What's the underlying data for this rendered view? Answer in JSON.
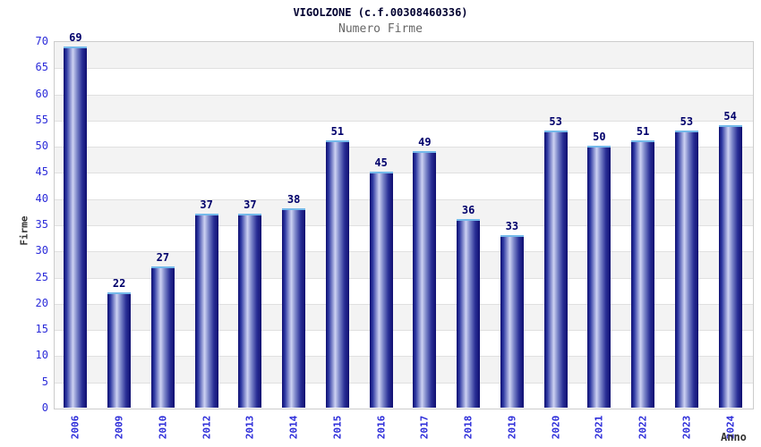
{
  "header": {
    "title": "VIGOLZONE (c.f.00308460336)",
    "subtitle": "Numero Firme"
  },
  "chart_data": {
    "type": "bar",
    "title": "VIGOLZONE (c.f.00308460336)",
    "subtitle": "Numero Firme",
    "categories": [
      "2006",
      "2009",
      "2010",
      "2012",
      "2013",
      "2014",
      "2015",
      "2016",
      "2017",
      "2018",
      "2019",
      "2020",
      "2021",
      "2022",
      "2023",
      "2024"
    ],
    "values": [
      69,
      22,
      27,
      37,
      37,
      38,
      51,
      45,
      49,
      36,
      33,
      53,
      50,
      51,
      53,
      54
    ],
    "xlabel": "Anno",
    "ylabel": "Firme",
    "ylim": [
      0,
      70
    ],
    "ytick_step": 5,
    "yticks": [
      0,
      5,
      10,
      15,
      20,
      25,
      30,
      35,
      40,
      45,
      50,
      55,
      60,
      65,
      70
    ],
    "grid": "horizontal gridlines every 5 units with alternating gray/white bands",
    "legend_position": "none",
    "bar_value_labels": "shown above each bar"
  },
  "colors": {
    "bar_edge": "#0f0f70",
    "bar_highlight": "#cdd2f2",
    "bar_top_cap": "#74b9ea",
    "tick_label_blue": "#2b2bd9",
    "value_label_navy": "#00006b",
    "title_color": "#000030",
    "subtitle_color": "#666666",
    "axis_title_color": "#333333",
    "band_gray": "#f3f3f3",
    "gridline": "#e0e0e0",
    "plot_border": "#cccccc",
    "background": "#ffffff"
  }
}
